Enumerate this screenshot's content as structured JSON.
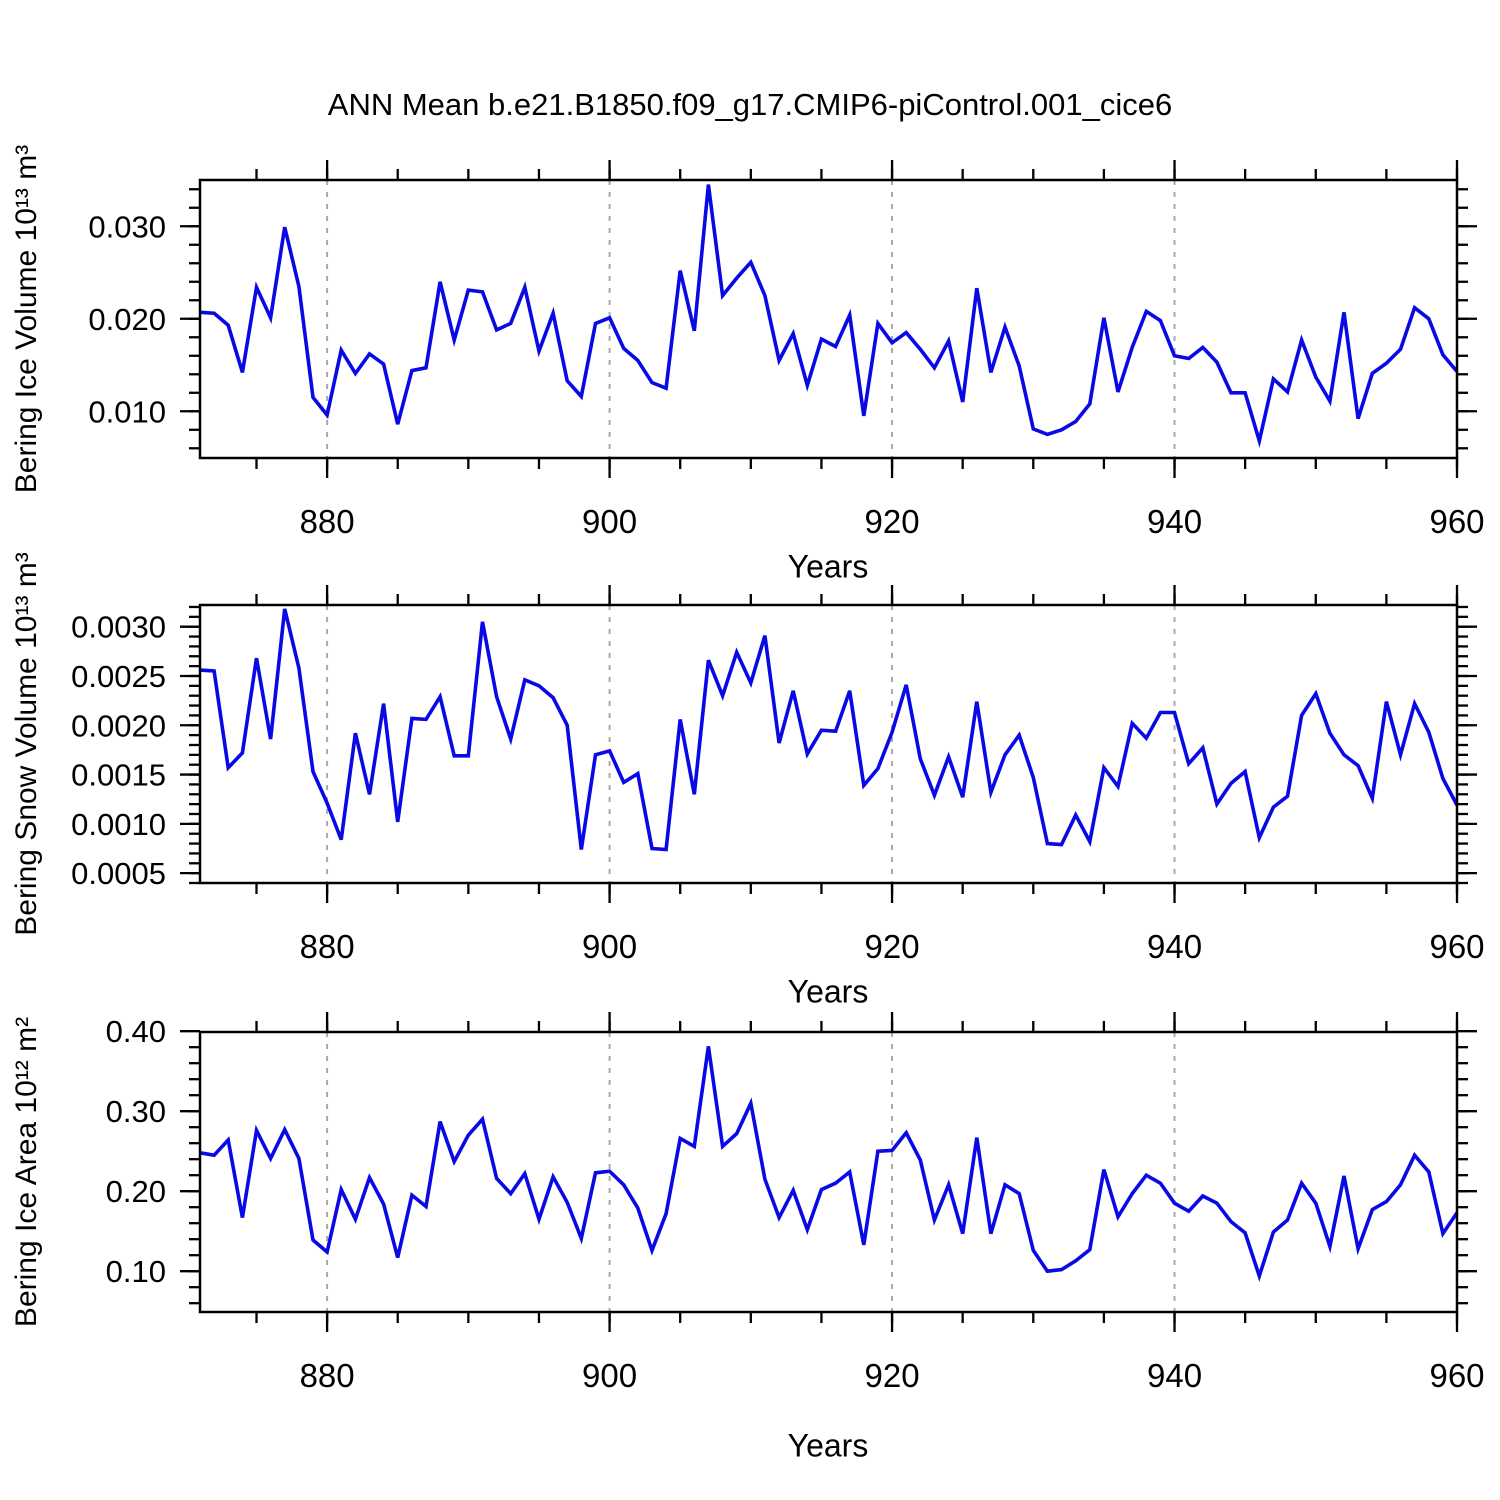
{
  "title": "ANN Mean b.e21.B1850.f09_g17.CMIP6-piControl.001_cice6",
  "colors": {
    "line": "#0909E6",
    "grid": "#A9A9A9",
    "axis": "#000000",
    "background": "#FFFFFF"
  },
  "chart_data": [
    {
      "type": "line",
      "id": "bering-ice-volume",
      "ylabel": "Bering Ice Volume 10¹³ m³",
      "xlabel": "Years",
      "xlim": [
        871,
        960
      ],
      "ylim": [
        0.00495,
        0.035
      ],
      "xticks": [
        880,
        900,
        920,
        940,
        960
      ],
      "xtick_labels": [
        "880",
        "900",
        "920",
        "940",
        "960"
      ],
      "xtick_minor_step": 5,
      "grid_x": [
        880,
        900,
        920,
        940
      ],
      "ytick_values": [
        0.01,
        0.02,
        0.03
      ],
      "ytick_labels": [
        "0.010",
        "0.020",
        "0.030"
      ],
      "ytick_minor_step": 0.002,
      "x_start": 871,
      "values": [
        0.0207,
        0.0206,
        0.0193,
        0.0142,
        0.0234,
        0.0201,
        0.0299,
        0.0235,
        0.0115,
        0.0096,
        0.0166,
        0.0141,
        0.0162,
        0.0151,
        0.0086,
        0.0144,
        0.0147,
        0.024,
        0.0177,
        0.0231,
        0.0229,
        0.0188,
        0.0195,
        0.0234,
        0.0165,
        0.0206,
        0.0133,
        0.0116,
        0.0195,
        0.0201,
        0.0168,
        0.0155,
        0.0131,
        0.0125,
        0.0252,
        0.0187,
        0.0345,
        0.0225,
        0.0244,
        0.0261,
        0.0225,
        0.0155,
        0.0184,
        0.0128,
        0.0178,
        0.017,
        0.0204,
        0.0095,
        0.0195,
        0.0174,
        0.0185,
        0.0167,
        0.0147,
        0.0176,
        0.011,
        0.0233,
        0.0142,
        0.0191,
        0.0149,
        0.0081,
        0.0075,
        0.008,
        0.0089,
        0.0108,
        0.0201,
        0.0121,
        0.0169,
        0.0208,
        0.0198,
        0.016,
        0.0157,
        0.0169,
        0.0153,
        0.012,
        0.012,
        0.0068,
        0.0135,
        0.0121,
        0.0177,
        0.0137,
        0.0111,
        0.0207,
        0.0092,
        0.0141,
        0.0152,
        0.0167,
        0.0212,
        0.02,
        0.0161,
        0.0143
      ]
    },
    {
      "type": "line",
      "id": "bering-snow-volume",
      "ylabel": "Bering Snow Volume 10¹³ m³",
      "xlabel": "Years",
      "xlim": [
        871,
        960
      ],
      "ylim": [
        0.0004,
        0.00322
      ],
      "xticks": [
        880,
        900,
        920,
        940,
        960
      ],
      "xtick_labels": [
        "880",
        "900",
        "920",
        "940",
        "960"
      ],
      "xtick_minor_step": 5,
      "grid_x": [
        880,
        900,
        920,
        940
      ],
      "ytick_values": [
        0.0005,
        0.001,
        0.0015,
        0.002,
        0.0025,
        0.003
      ],
      "ytick_labels": [
        "0.0005",
        "0.0010",
        "0.0015",
        "0.0020",
        "0.0025",
        "0.0030"
      ],
      "ytick_minor_step": 0.0001,
      "x_start": 871,
      "values": [
        0.00256,
        0.00255,
        0.00157,
        0.00172,
        0.00268,
        0.00186,
        0.00318,
        0.00258,
        0.00153,
        0.00121,
        0.00084,
        0.00192,
        0.0013,
        0.00222,
        0.00102,
        0.00207,
        0.00206,
        0.00229,
        0.00169,
        0.00169,
        0.00305,
        0.00229,
        0.00186,
        0.00246,
        0.0024,
        0.00228,
        0.002,
        0.00074,
        0.0017,
        0.00174,
        0.00142,
        0.00151,
        0.00075,
        0.00074,
        0.00206,
        0.0013,
        0.00266,
        0.0023,
        0.00274,
        0.00243,
        0.00291,
        0.00182,
        0.00235,
        0.00171,
        0.00195,
        0.00194,
        0.00235,
        0.00139,
        0.00156,
        0.00193,
        0.00241,
        0.00166,
        0.00129,
        0.00168,
        0.00127,
        0.00224,
        0.00132,
        0.0017,
        0.0019,
        0.00147,
        0.0008,
        0.00079,
        0.00109,
        0.00082,
        0.00157,
        0.00138,
        0.00202,
        0.00187,
        0.00213,
        0.00213,
        0.00161,
        0.00177,
        0.0012,
        0.00141,
        0.00153,
        0.00086,
        0.00117,
        0.00128,
        0.0021,
        0.00232,
        0.00192,
        0.0017,
        0.00159,
        0.00126,
        0.00224,
        0.0017,
        0.00222,
        0.00193,
        0.00146,
        0.00119
      ]
    },
    {
      "type": "line",
      "id": "bering-ice-area",
      "ylabel": "Bering Ice Area 10¹² m²",
      "xlabel": "Years",
      "xlim": [
        871,
        960
      ],
      "ylim": [
        0.049,
        0.399
      ],
      "xticks": [
        880,
        900,
        920,
        940,
        960
      ],
      "xtick_labels": [
        "880",
        "900",
        "920",
        "940",
        "960"
      ],
      "xtick_minor_step": 5,
      "grid_x": [
        880,
        900,
        920,
        940
      ],
      "ytick_values": [
        0.1,
        0.2,
        0.3,
        0.4
      ],
      "ytick_labels": [
        "0.10",
        "0.20",
        "0.30",
        "0.40"
      ],
      "ytick_minor_step": 0.02,
      "x_start": 871,
      "values": [
        0.248,
        0.245,
        0.264,
        0.167,
        0.276,
        0.241,
        0.277,
        0.241,
        0.139,
        0.124,
        0.202,
        0.165,
        0.217,
        0.184,
        0.117,
        0.195,
        0.181,
        0.287,
        0.237,
        0.27,
        0.29,
        0.216,
        0.197,
        0.222,
        0.165,
        0.218,
        0.186,
        0.141,
        0.223,
        0.225,
        0.208,
        0.179,
        0.126,
        0.172,
        0.266,
        0.256,
        0.381,
        0.256,
        0.272,
        0.31,
        0.215,
        0.167,
        0.201,
        0.152,
        0.202,
        0.21,
        0.224,
        0.133,
        0.25,
        0.251,
        0.273,
        0.239,
        0.164,
        0.208,
        0.147,
        0.267,
        0.147,
        0.208,
        0.197,
        0.126,
        0.1,
        0.102,
        0.113,
        0.127,
        0.227,
        0.168,
        0.197,
        0.22,
        0.21,
        0.185,
        0.175,
        0.194,
        0.185,
        0.162,
        0.148,
        0.094,
        0.149,
        0.164,
        0.21,
        0.185,
        0.131,
        0.219,
        0.128,
        0.177,
        0.187,
        0.208,
        0.245,
        0.224,
        0.147,
        0.173
      ]
    }
  ]
}
